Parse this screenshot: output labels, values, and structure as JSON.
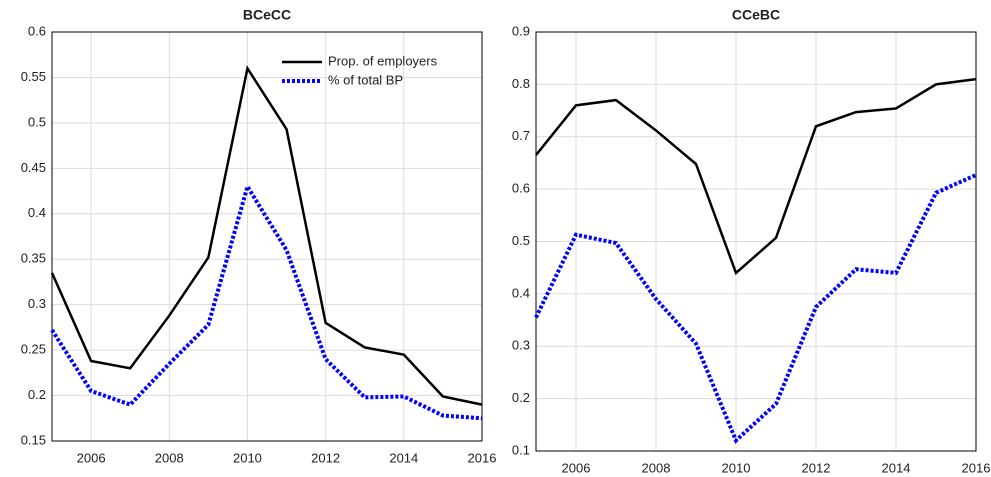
{
  "chart_data": [
    {
      "type": "line",
      "title": "BCeCC",
      "x": [
        2005,
        2006,
        2007,
        2008,
        2009,
        2010,
        2011,
        2012,
        2013,
        2014,
        2015,
        2016
      ],
      "series": [
        {
          "name": "Prop. of employers",
          "color": "#000000",
          "dash": "solid",
          "values": [
            0.335,
            0.238,
            0.23,
            0.288,
            0.352,
            0.56,
            0.493,
            0.28,
            0.253,
            0.245,
            0.199,
            0.19
          ]
        },
        {
          "name": "% of total BP",
          "color": "#0000ff",
          "dash": "dotted",
          "values": [
            0.272,
            0.205,
            0.19,
            0.235,
            0.278,
            0.43,
            0.36,
            0.24,
            0.198,
            0.199,
            0.178,
            0.175
          ]
        }
      ],
      "xlim": [
        2005,
        2016
      ],
      "xticks": [
        2006,
        2008,
        2010,
        2012,
        2014,
        2016
      ],
      "ylim": [
        0.15,
        0.6
      ],
      "yticks": [
        0.15,
        0.2,
        0.25,
        0.3,
        0.35,
        0.4,
        0.45,
        0.5,
        0.55,
        0.6
      ],
      "grid": true,
      "legend": "upper right"
    },
    {
      "type": "line",
      "title": "CCeBC",
      "x": [
        2005,
        2006,
        2007,
        2008,
        2009,
        2010,
        2011,
        2012,
        2013,
        2014,
        2015,
        2016
      ],
      "series": [
        {
          "color": "#000000",
          "dash": "solid",
          "values": [
            0.665,
            0.76,
            0.77,
            0.712,
            0.648,
            0.44,
            0.507,
            0.72,
            0.747,
            0.754,
            0.8,
            0.81
          ]
        },
        {
          "color": "#0000ff",
          "dash": "dotted",
          "values": [
            0.355,
            0.513,
            0.497,
            0.39,
            0.305,
            0.12,
            0.19,
            0.375,
            0.447,
            0.44,
            0.593,
            0.627
          ]
        }
      ],
      "xlim": [
        2005,
        2016
      ],
      "xticks": [
        2006,
        2008,
        2010,
        2012,
        2014,
        2016
      ],
      "ylim": [
        0.1,
        0.9
      ],
      "yticks": [
        0.1,
        0.2,
        0.3,
        0.4,
        0.5,
        0.6,
        0.7,
        0.8,
        0.9
      ],
      "grid": true
    }
  ]
}
